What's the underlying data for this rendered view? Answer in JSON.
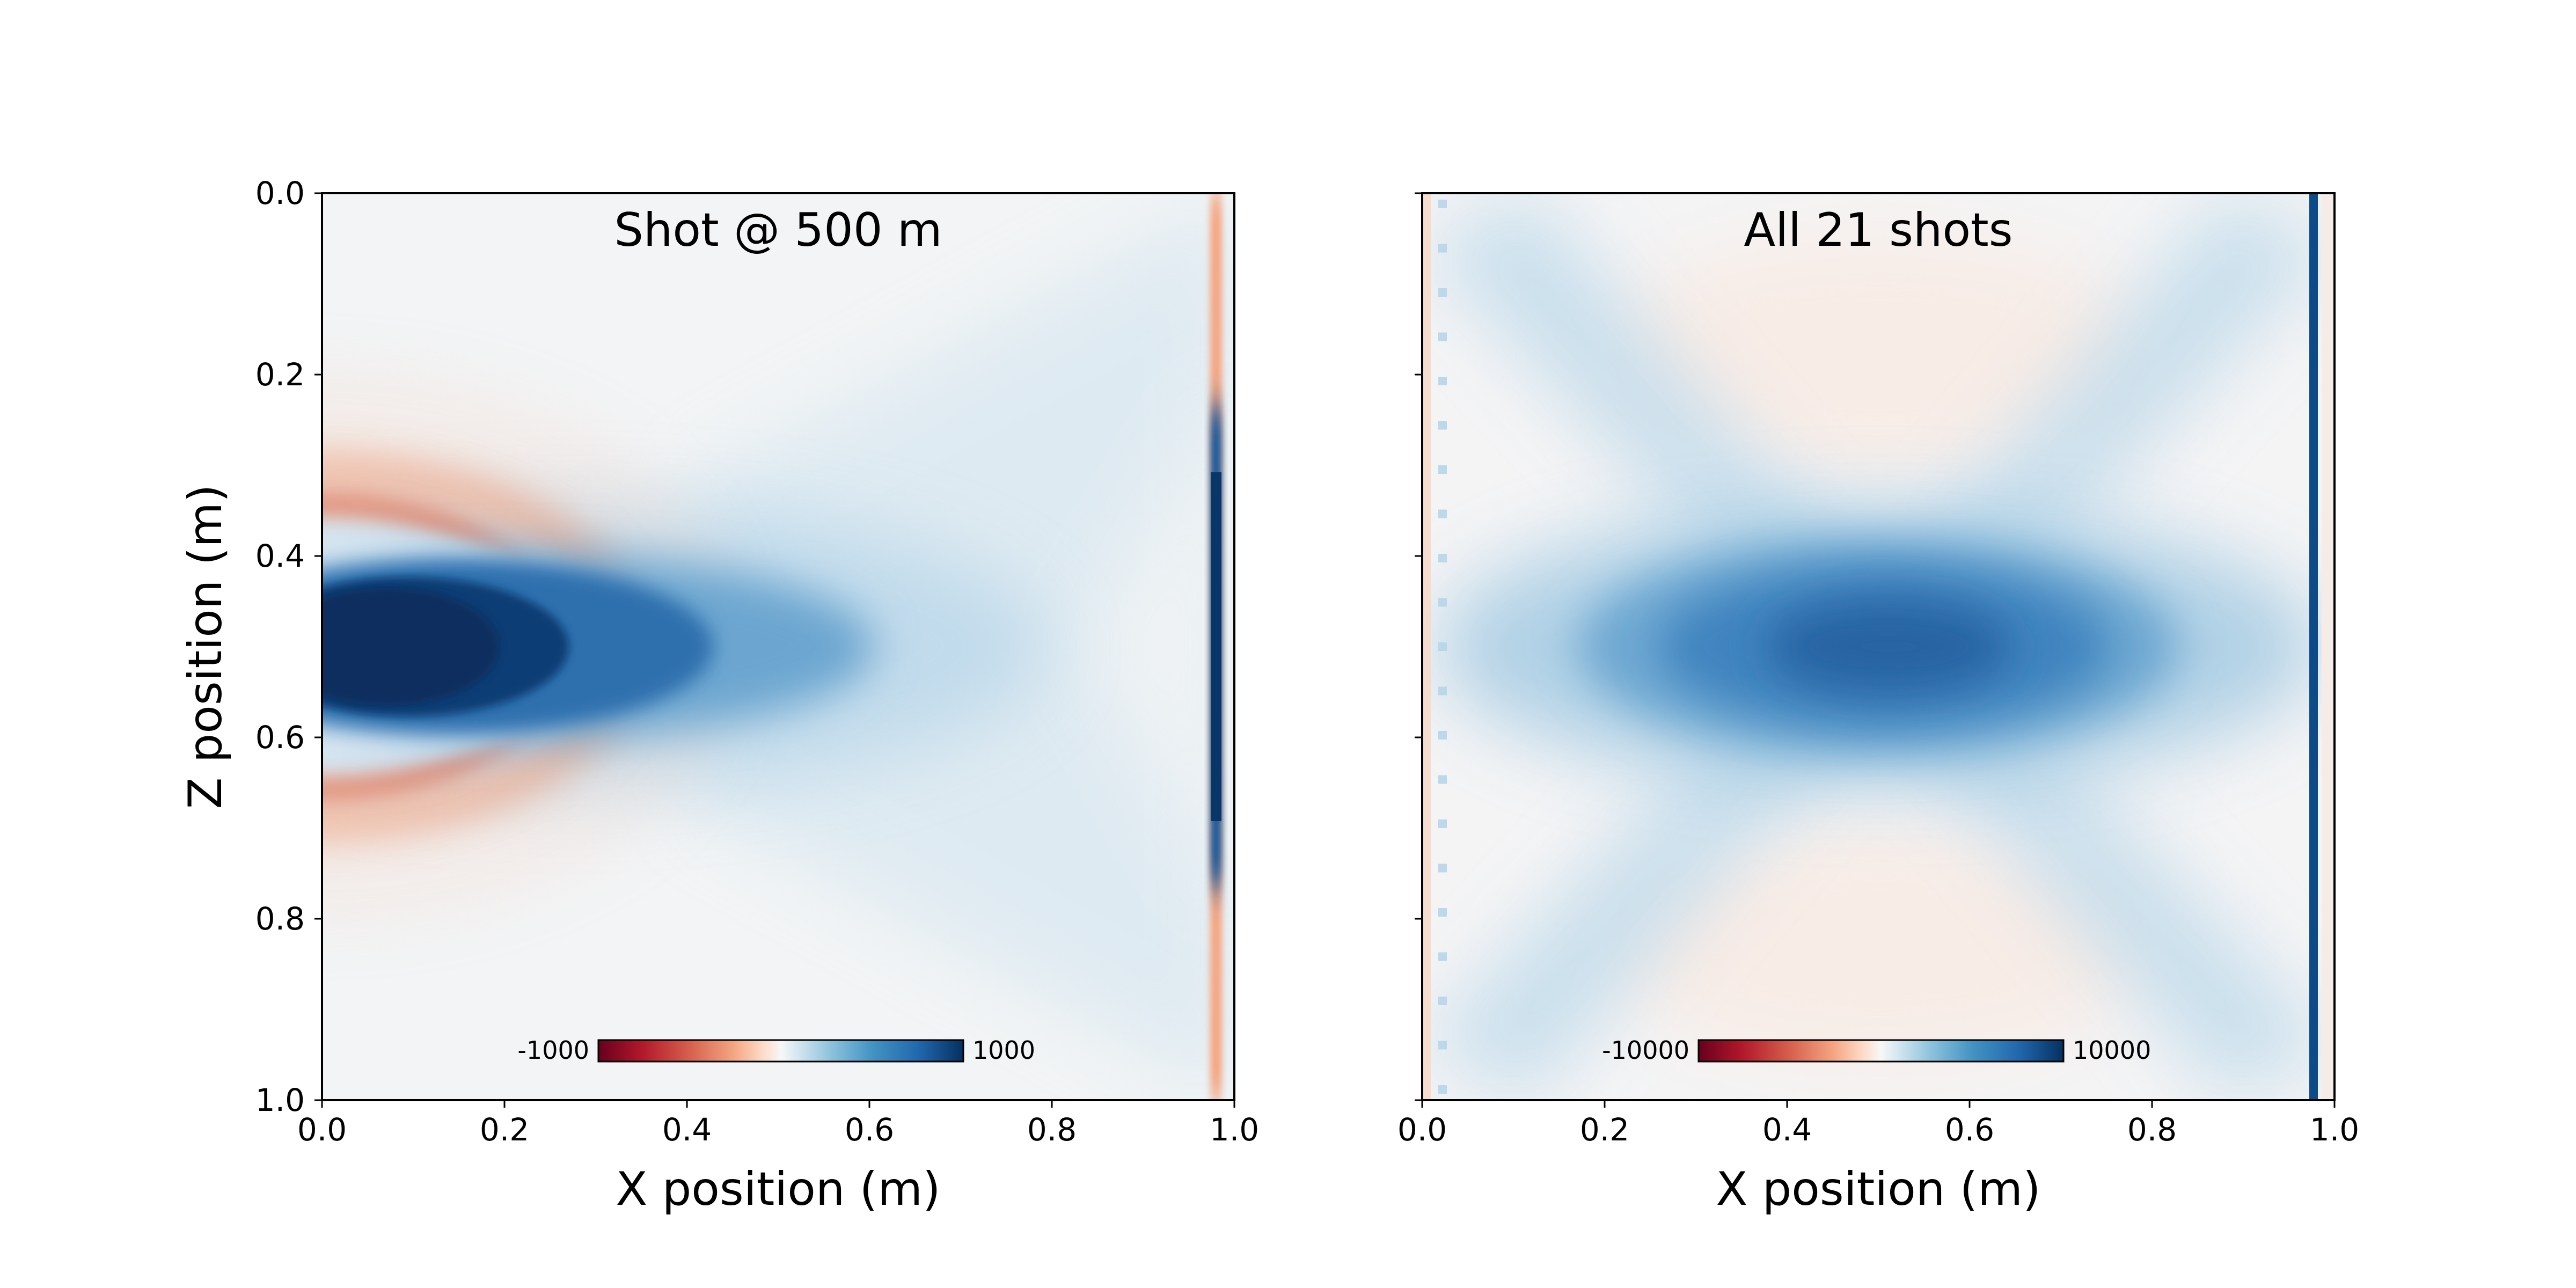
{
  "chart_data": [
    {
      "type": "heatmap",
      "title": "Shot @ 500 m",
      "xlabel": "X position (m)",
      "ylabel": "Z position (m)",
      "xlim": [
        0.0,
        1.0
      ],
      "ylim": [
        0.0,
        1.0
      ],
      "y_inverted": true,
      "x_ticks": [
        "0.0",
        "0.2",
        "0.4",
        "0.6",
        "0.8",
        "1.0"
      ],
      "y_ticks": [
        "0.0",
        "0.2",
        "0.4",
        "0.6",
        "0.8",
        "1.0"
      ],
      "colormap": "RdBu",
      "colorbar": {
        "min_label": "-1000",
        "max_label": "1000",
        "min": -1000,
        "max": 1000,
        "placement": "bottom-center",
        "orientation": "horizontal"
      },
      "source": {
        "x": 0.0,
        "z": 0.5
      },
      "receiver_line_x": 0.98
    },
    {
      "type": "heatmap",
      "title": "All 21 shots",
      "xlabel": "X position (m)",
      "ylabel": "",
      "xlim": [
        0.0,
        1.0
      ],
      "ylim": [
        0.0,
        1.0
      ],
      "y_inverted": true,
      "x_ticks": [
        "0.0",
        "0.2",
        "0.4",
        "0.6",
        "0.8",
        "1.0"
      ],
      "colormap": "RdBu",
      "colorbar": {
        "min_label": "-10000",
        "max_label": "10000",
        "min": -10000,
        "max": 10000,
        "placement": "bottom-center",
        "orientation": "horizontal"
      },
      "shot_count": 21,
      "receiver_line_x": 0.98
    }
  ]
}
